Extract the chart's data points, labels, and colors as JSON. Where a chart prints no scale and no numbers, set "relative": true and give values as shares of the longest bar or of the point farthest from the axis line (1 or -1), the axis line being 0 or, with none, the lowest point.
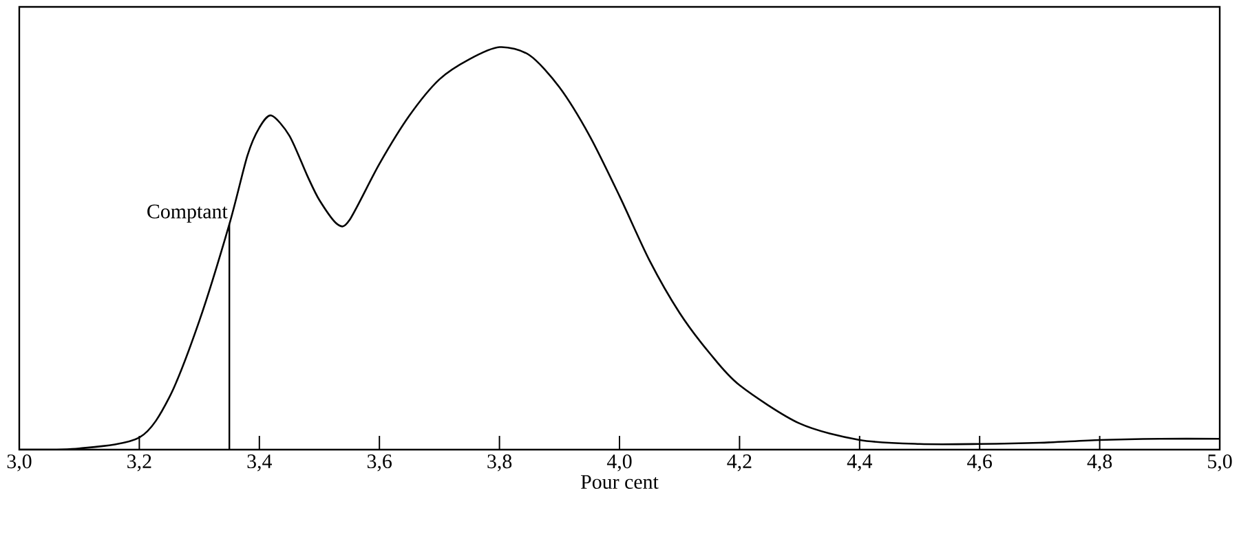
{
  "chart_data": {
    "type": "line",
    "relative": true,
    "xlabel": "Pour cent",
    "color": "#000000",
    "x": [
      3.0,
      3.1,
      3.2,
      3.25,
      3.3,
      3.35,
      3.38,
      3.4,
      3.42,
      3.45,
      3.48,
      3.5,
      3.53,
      3.55,
      3.6,
      3.65,
      3.7,
      3.75,
      3.8,
      3.85,
      3.9,
      3.95,
      4.0,
      4.05,
      4.1,
      4.15,
      4.2,
      4.3,
      4.4,
      4.5,
      4.6,
      4.7,
      4.8,
      4.9,
      5.0
    ],
    "values": [
      0,
      0.003,
      0.03,
      0.13,
      0.32,
      0.56,
      0.73,
      0.8,
      0.83,
      0.78,
      0.68,
      0.62,
      0.56,
      0.57,
      0.71,
      0.83,
      0.92,
      0.97,
      1,
      0.98,
      0.9,
      0.78,
      0.63,
      0.47,
      0.34,
      0.24,
      0.16,
      0.065,
      0.024,
      0.014,
      0.014,
      0.017,
      0.024,
      0.027,
      0.027
    ],
    "xlim": [
      3.0,
      5.0
    ],
    "xticks": [
      {
        "value": 3.0,
        "label": "3,0"
      },
      {
        "value": 3.2,
        "label": "3,2"
      },
      {
        "value": 3.4,
        "label": "3,4"
      },
      {
        "value": 3.6,
        "label": "3,6"
      },
      {
        "value": 3.8,
        "label": "3,8"
      },
      {
        "value": 4.0,
        "label": "4,0"
      },
      {
        "value": 4.2,
        "label": "4,2"
      },
      {
        "value": 4.4,
        "label": "4,4"
      },
      {
        "value": 4.6,
        "label": "4,6"
      },
      {
        "value": 4.8,
        "label": "4,8"
      },
      {
        "value": 5.0,
        "label": "5,0"
      }
    ],
    "ref_lines": [
      {
        "axis": "x",
        "value": 3.35,
        "label": "Comptant"
      }
    ],
    "marker": "none",
    "line_style": "solid"
  }
}
